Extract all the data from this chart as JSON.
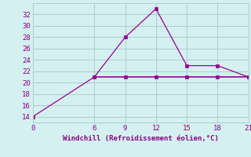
{
  "xlabel": "Windchill (Refroidissement éolien,°C)",
  "line1_x": [
    0,
    6,
    9,
    12,
    15,
    18,
    21
  ],
  "line1_y": [
    14,
    21,
    28,
    33,
    23,
    23,
    21
  ],
  "line2_x": [
    6,
    9,
    12,
    15,
    18,
    21
  ],
  "line2_y": [
    21,
    21,
    21,
    21,
    21,
    21
  ],
  "line_color": "#990099",
  "bg_color": "#d4f0f0",
  "grid_color": "#aacece",
  "tick_color": "#880088",
  "label_color": "#880088",
  "xlim": [
    0,
    21
  ],
  "ylim": [
    13,
    34
  ],
  "yticks": [
    14,
    16,
    18,
    20,
    22,
    24,
    26,
    28,
    30,
    32
  ],
  "xticks": [
    0,
    6,
    9,
    12,
    15,
    18,
    21
  ]
}
